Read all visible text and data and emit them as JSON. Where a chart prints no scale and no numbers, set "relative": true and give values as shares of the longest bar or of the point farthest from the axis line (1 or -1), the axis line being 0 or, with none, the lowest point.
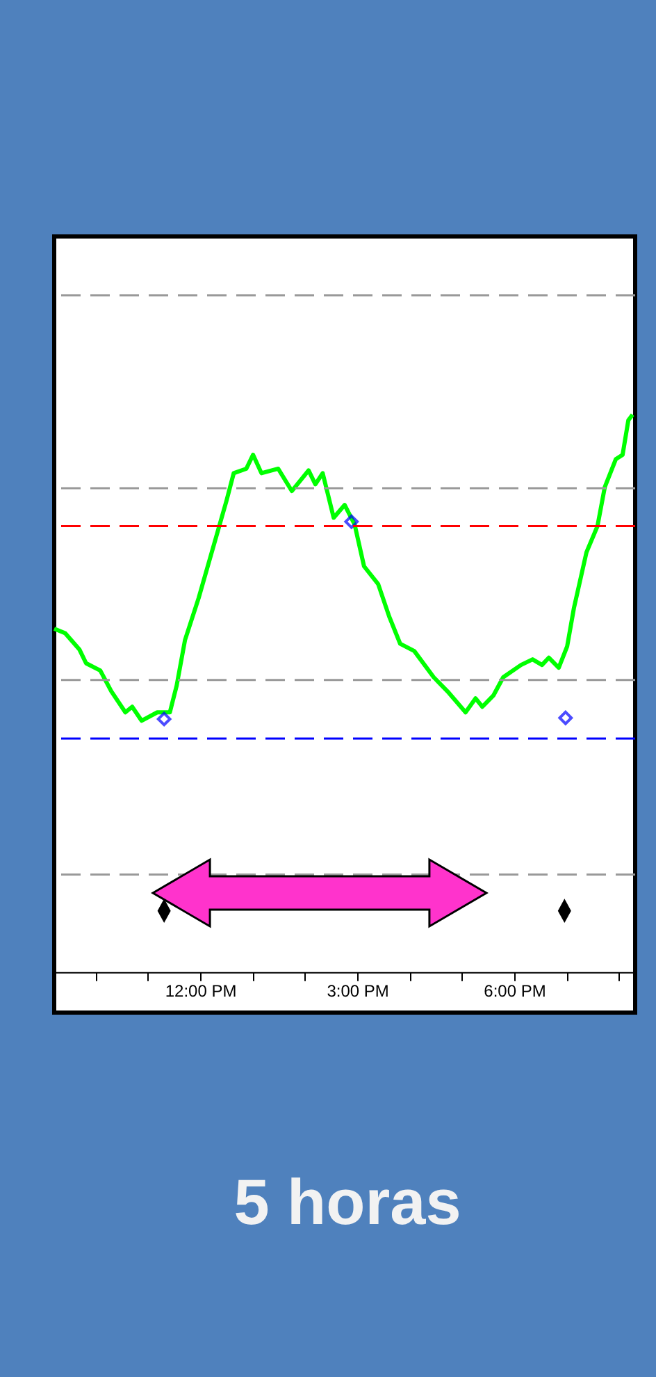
{
  "chart_data": {
    "type": "line",
    "relative": true,
    "xlim": [
      9.21,
      20.31
    ],
    "xticks": [
      {
        "value": 10,
        "label": null
      },
      {
        "value": 11,
        "label": null
      },
      {
        "value": 12,
        "label": "12:00 PM"
      },
      {
        "value": 13,
        "label": null
      },
      {
        "value": 14,
        "label": null
      },
      {
        "value": 15,
        "label": "3:00 PM"
      },
      {
        "value": 16,
        "label": null
      },
      {
        "value": 17,
        "label": null
      },
      {
        "value": 18,
        "label": "6:00 PM"
      },
      {
        "value": 19,
        "label": null
      },
      {
        "value": 20,
        "label": null
      }
    ],
    "series": [
      {
        "type": "line",
        "color": "#00ff00",
        "line_style": "solid",
        "marker": "none",
        "x": [
          9.21,
          9.42,
          9.69,
          9.82,
          10.09,
          10.3,
          10.57,
          10.7,
          10.88,
          11.18,
          11.42,
          11.55,
          11.71,
          11.97,
          12.29,
          12.5,
          12.64,
          12.88,
          13.01,
          13.17,
          13.49,
          13.75,
          14.07,
          14.2,
          14.34,
          14.55,
          14.76,
          14.95,
          15.13,
          15.4,
          15.61,
          15.82,
          16.09,
          16.46,
          16.75,
          17.07,
          17.26,
          17.39,
          17.6,
          17.79,
          18.13,
          18.35,
          18.53,
          18.66,
          18.85,
          19.01,
          19.14,
          19.38,
          19.59,
          19.73,
          19.94,
          20.07,
          20.18,
          20.26
        ],
        "values": [
          0.616,
          0.608,
          0.579,
          0.554,
          0.541,
          0.504,
          0.466,
          0.476,
          0.451,
          0.466,
          0.466,
          0.514,
          0.596,
          0.671,
          0.776,
          0.845,
          0.895,
          0.903,
          0.928,
          0.895,
          0.903,
          0.863,
          0.9,
          0.875,
          0.895,
          0.815,
          0.838,
          0.803,
          0.728,
          0.696,
          0.638,
          0.589,
          0.576,
          0.529,
          0.501,
          0.466,
          0.491,
          0.476,
          0.496,
          0.529,
          0.551,
          0.561,
          0.551,
          0.564,
          0.546,
          0.584,
          0.653,
          0.753,
          0.8,
          0.87,
          0.92,
          0.928,
          0.99,
          1.0
        ]
      },
      {
        "type": "scatter",
        "color": "#0000ff",
        "marker": "diamond",
        "x": [
          11.31,
          14.89,
          18.98
        ],
        "values": [
          0.454,
          0.808,
          0.456
        ]
      },
      {
        "type": "scatter",
        "color": "#000000",
        "marker": "diamond",
        "x": [
          11.31,
          18.96
        ],
        "values": [
          0.11,
          0.11
        ]
      }
    ],
    "ref_lines": [
      {
        "axis": "y",
        "value": 1.214,
        "color": "#999999",
        "line_style": "dashed"
      },
      {
        "axis": "y",
        "value": 0.868,
        "color": "#999999",
        "line_style": "dashed"
      },
      {
        "axis": "y",
        "value": 0.524,
        "color": "#999999",
        "line_style": "dashed"
      },
      {
        "axis": "y",
        "value": 0.175,
        "color": "#999999",
        "line_style": "dashed"
      },
      {
        "axis": "y",
        "value": 0.8,
        "color": "#ff0000",
        "line_style": "dashed"
      },
      {
        "axis": "y",
        "value": 0.419,
        "color": "#0000ff",
        "line_style": "dashed"
      }
    ],
    "annotations": [
      "5 horas"
    ]
  }
}
